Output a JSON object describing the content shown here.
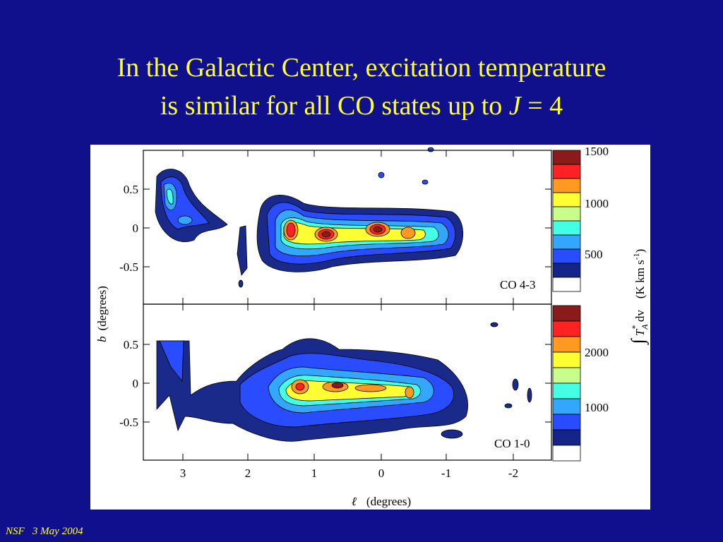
{
  "slide": {
    "title_line1": "In the Galactic Center, excitation temperature",
    "title_line2_a": "is similar for all CO states up to ",
    "title_line2_j": "J",
    "title_line2_b": " = 4",
    "footer": "NSF   3 May 2004"
  },
  "figure": {
    "x_ticks": [
      "3",
      "2",
      "1",
      "0",
      "-1",
      "-2"
    ],
    "top_y_ticks": [
      "0.5",
      "0",
      "-0.5"
    ],
    "bottom_y_ticks": [
      "0.5",
      "0",
      "-0.5"
    ],
    "top_panel_label": "CO 4-3",
    "bottom_panel_label": "CO 1-0",
    "top_colorbar_ticks": [
      "1500",
      "1000",
      "500"
    ],
    "bottom_colorbar_ticks": [
      "2000",
      "1000"
    ],
    "y_label_symbol": "b",
    "y_label_unit": "(degrees)",
    "x_label_symbol": "ℓ",
    "x_label_unit": "(degrees)",
    "cb_integral": "∫",
    "cb_T": "T",
    "cb_sub": "A",
    "cb_sup": "*",
    "cb_dv": " dv",
    "cb_unit": "(K km s",
    "cb_unit_sup": "-1",
    "cb_unit_close": ")"
  }
}
